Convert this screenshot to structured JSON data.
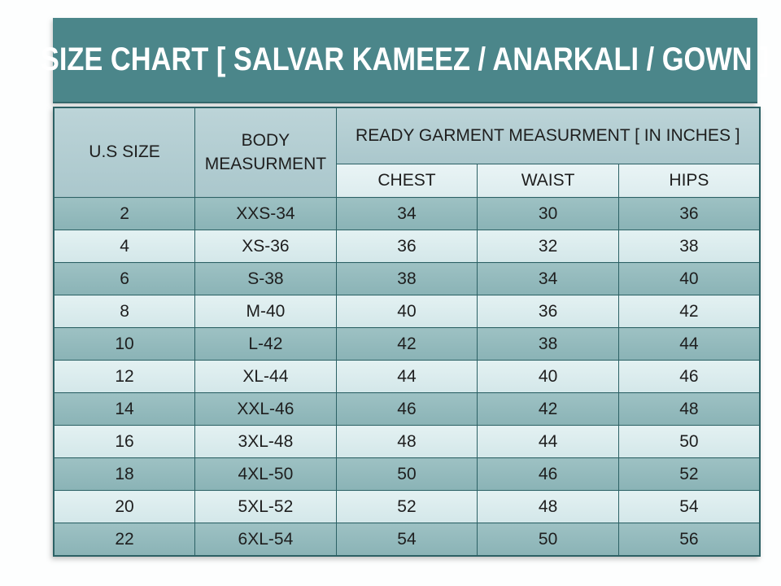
{
  "chart_data": {
    "type": "table",
    "title": "SIZE CHART [ SALVAR KAMEEZ / ANARKALI / GOWN ]",
    "header_group": "READY GARMENT MEASURMENT [ IN INCHES ]",
    "header_group_spans": [
      "CHEST",
      "WAIST",
      "HIPS"
    ],
    "columns": [
      "U.S SIZE",
      "BODY MEASURMENT",
      "CHEST",
      "WAIST",
      "HIPS"
    ],
    "rows": [
      [
        "2",
        "XXS-34",
        "34",
        "30",
        "36"
      ],
      [
        "4",
        "XS-36",
        "36",
        "32",
        "38"
      ],
      [
        "6",
        "S-38",
        "38",
        "34",
        "40"
      ],
      [
        "8",
        "M-40",
        "40",
        "36",
        "42"
      ],
      [
        "10",
        "L-42",
        "42",
        "38",
        "44"
      ],
      [
        "12",
        "XL-44",
        "44",
        "40",
        "46"
      ],
      [
        "14",
        "XXL-46",
        "46",
        "42",
        "48"
      ],
      [
        "16",
        "3XL-48",
        "48",
        "44",
        "50"
      ],
      [
        "18",
        "4XL-50",
        "50",
        "46",
        "52"
      ],
      [
        "20",
        "5XL-52",
        "52",
        "48",
        "54"
      ],
      [
        "22",
        "6XL-54",
        "54",
        "50",
        "56"
      ]
    ],
    "layout": {
      "row_striping": "odd rows dark teal, even rows light teal",
      "alignment": "center"
    }
  },
  "colors": {
    "banner_background": "#4b868a",
    "banner_text": "#ffffff",
    "header_cell": "#b3ced3",
    "subheader_cell": "#e2eff1",
    "row_dark": "#8fb7ba",
    "row_light": "#d9ebed",
    "border": "#2c6165",
    "cell_text": "#1e1e1e",
    "page_background": "#ffffff"
  }
}
